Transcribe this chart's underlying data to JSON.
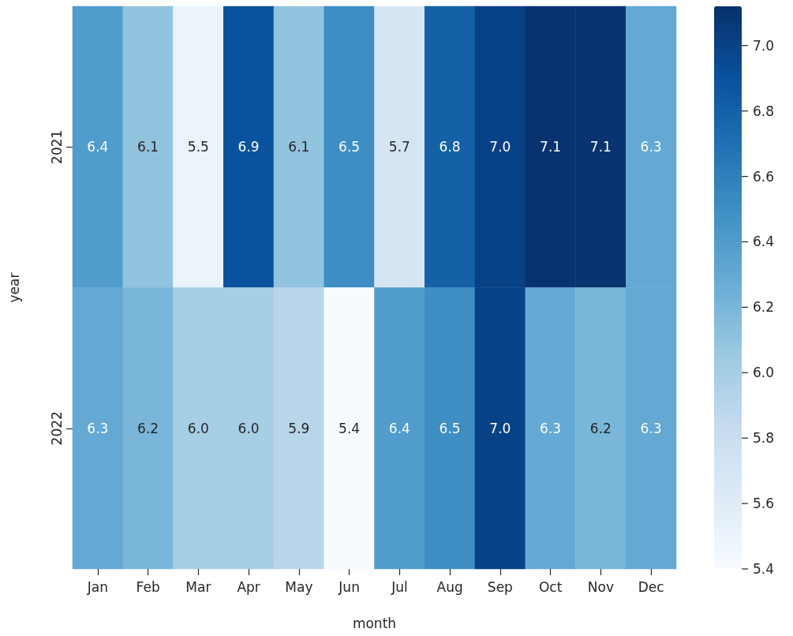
{
  "chart_data": {
    "type": "heatmap",
    "xlabel": "month",
    "ylabel": "year",
    "categories": [
      "Jan",
      "Feb",
      "Mar",
      "Apr",
      "May",
      "Jun",
      "Jul",
      "Aug",
      "Sep",
      "Oct",
      "Nov",
      "Dec"
    ],
    "y_categories": [
      "2021",
      "2022"
    ],
    "cells": [
      [
        6.4,
        6.1,
        5.5,
        6.9,
        6.1,
        6.5,
        5.7,
        6.8,
        7.0,
        7.1,
        7.1,
        6.3
      ],
      [
        6.3,
        6.2,
        6.0,
        6.0,
        5.9,
        5.4,
        6.4,
        6.5,
        7.0,
        6.3,
        6.2,
        6.3
      ]
    ],
    "cell_labels": [
      [
        "6.4",
        "6.1",
        "5.5",
        "6.9",
        "6.1",
        "6.5",
        "5.7",
        "6.8",
        "7.0",
        "7.1",
        "7.1",
        "6.3"
      ],
      [
        "6.3",
        "6.2",
        "6.0",
        "6.0",
        "5.9",
        "5.4",
        "6.4",
        "6.5",
        "7.0",
        "6.3",
        "6.2",
        "6.3"
      ]
    ],
    "clim": [
      5.4,
      7.12
    ],
    "cticks": [
      5.4,
      5.6,
      5.8,
      {
        "value": 6,
        "label": "6.0"
      },
      6.2,
      6.4,
      6.6,
      6.8,
      {
        "value": 7,
        "label": "7.0"
      }
    ]
  }
}
